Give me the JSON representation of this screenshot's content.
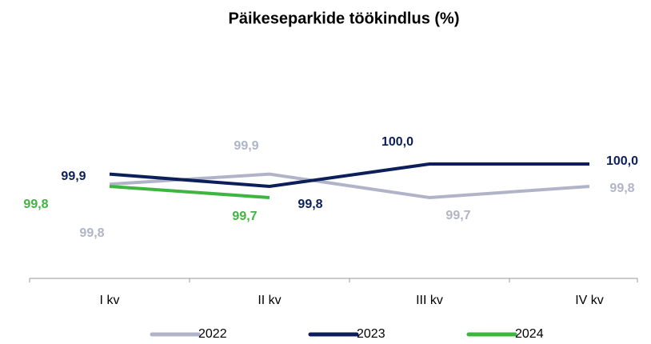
{
  "chart_data": {
    "type": "line",
    "title": "Päikeseparkide töökindlus (%)",
    "categories": [
      "I kv",
      "II kv",
      "III kv",
      "IV kv"
    ],
    "series": [
      {
        "name": "2022",
        "color": "#b1b4c8",
        "values": [
          99.82,
          99.91,
          99.7,
          99.8
        ],
        "value_labels": [
          "99,8",
          "99,9",
          "99,7",
          "99,8"
        ]
      },
      {
        "name": "2023",
        "color": "#0c1f5b",
        "values": [
          99.91,
          99.8,
          100.0,
          100.0
        ],
        "value_labels": [
          "99,9",
          "99,8",
          "100,0",
          "100,0"
        ]
      },
      {
        "name": "2024",
        "color": "#3fb541",
        "values": [
          99.8,
          99.7,
          null,
          null
        ],
        "value_labels": [
          "99,8",
          "99,7",
          null,
          null
        ]
      }
    ],
    "ylim": [
      99.0,
      100.6
    ],
    "grid": false,
    "legend": "bottom"
  }
}
